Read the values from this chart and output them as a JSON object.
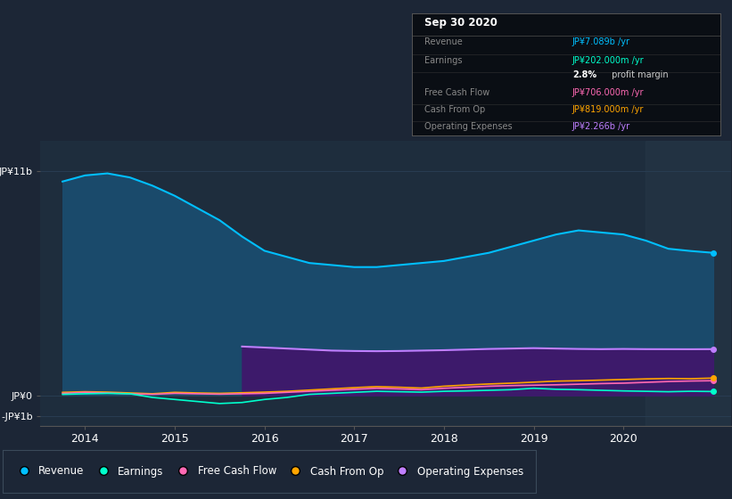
{
  "background_color": "#1c2636",
  "plot_bg_color": "#1e2d3d",
  "grid_color": "#2a3f55",
  "yticks": [
    "JP¥11b",
    "JP¥0",
    "-JP¥1b"
  ],
  "ytick_values": [
    11000000000.0,
    0,
    -1000000000.0
  ],
  "ylim": [
    -1500000000.0,
    12500000000.0
  ],
  "xlim_start": 2013.5,
  "xlim_end": 2021.2,
  "xticks": [
    2014,
    2015,
    2016,
    2017,
    2018,
    2019,
    2020
  ],
  "shaded_region_start": 2020.25,
  "series": {
    "revenue": {
      "color": "#00bfff",
      "fill_color": "#1a4a6b",
      "label": "Revenue",
      "x": [
        2013.75,
        2014.0,
        2014.25,
        2014.5,
        2014.75,
        2015.0,
        2015.25,
        2015.5,
        2015.75,
        2016.0,
        2016.25,
        2016.5,
        2016.75,
        2017.0,
        2017.25,
        2017.5,
        2017.75,
        2018.0,
        2018.25,
        2018.5,
        2018.75,
        2019.0,
        2019.25,
        2019.5,
        2019.75,
        2020.0,
        2020.25,
        2020.5,
        2020.75,
        2021.0
      ],
      "y": [
        10500000000.0,
        10800000000.0,
        10900000000.0,
        10700000000.0,
        10300000000.0,
        9800000000.0,
        9200000000.0,
        8600000000.0,
        7800000000.0,
        7100000000.0,
        6800000000.0,
        6500000000.0,
        6400000000.0,
        6300000000.0,
        6300000000.0,
        6400000000.0,
        6500000000.0,
        6600000000.0,
        6800000000.0,
        7000000000.0,
        7300000000.0,
        7600000000.0,
        7900000000.0,
        8100000000.0,
        8000000000.0,
        7900000000.0,
        7600000000.0,
        7200000000.0,
        7089000000.0,
        7000000000.0
      ]
    },
    "earnings": {
      "color": "#00ffcc",
      "label": "Earnings",
      "x": [
        2013.75,
        2014.0,
        2014.25,
        2014.5,
        2014.75,
        2015.0,
        2015.25,
        2015.5,
        2015.75,
        2016.0,
        2016.25,
        2016.5,
        2016.75,
        2017.0,
        2017.25,
        2017.5,
        2017.75,
        2018.0,
        2018.25,
        2018.5,
        2018.75,
        2019.0,
        2019.25,
        2019.5,
        2019.75,
        2020.0,
        2020.25,
        2020.5,
        2020.75,
        2021.0
      ],
      "y": [
        50000000.0,
        80000000.0,
        100000000.0,
        80000000.0,
        -100000000.0,
        -200000000.0,
        -300000000.0,
        -400000000.0,
        -350000000.0,
        -200000000.0,
        -100000000.0,
        50000000.0,
        100000000.0,
        150000000.0,
        200000000.0,
        180000000.0,
        160000000.0,
        200000000.0,
        220000000.0,
        250000000.0,
        280000000.0,
        350000000.0,
        300000000.0,
        280000000.0,
        250000000.0,
        220000000.0,
        200000000.0,
        180000000.0,
        202000000.0,
        190000000.0
      ]
    },
    "free_cash_flow": {
      "color": "#ff69b4",
      "label": "Free Cash Flow",
      "x": [
        2013.75,
        2014.0,
        2014.25,
        2014.5,
        2014.75,
        2015.0,
        2015.25,
        2015.5,
        2015.75,
        2016.0,
        2016.25,
        2016.5,
        2016.75,
        2017.0,
        2017.25,
        2017.5,
        2017.75,
        2018.0,
        2018.25,
        2018.5,
        2018.75,
        2019.0,
        2019.25,
        2019.5,
        2019.75,
        2020.0,
        2020.25,
        2020.5,
        2020.75,
        2021.0
      ],
      "y": [
        100000000.0,
        150000000.0,
        120000000.0,
        80000000.0,
        50000000.0,
        100000000.0,
        80000000.0,
        60000000.0,
        80000000.0,
        100000000.0,
        150000000.0,
        200000000.0,
        250000000.0,
        300000000.0,
        350000000.0,
        320000000.0,
        280000000.0,
        350000000.0,
        400000000.0,
        450000000.0,
        480000000.0,
        500000000.0,
        520000000.0,
        550000000.0,
        580000000.0,
        600000000.0,
        640000000.0,
        680000000.0,
        706000000.0,
        720000000.0
      ]
    },
    "cash_from_op": {
      "color": "#ffa500",
      "label": "Cash From Op",
      "x": [
        2013.75,
        2014.0,
        2014.25,
        2014.5,
        2014.75,
        2015.0,
        2015.25,
        2015.5,
        2015.75,
        2016.0,
        2016.25,
        2016.5,
        2016.75,
        2017.0,
        2017.25,
        2017.5,
        2017.75,
        2018.0,
        2018.25,
        2018.5,
        2018.75,
        2019.0,
        2019.25,
        2019.5,
        2019.75,
        2020.0,
        2020.25,
        2020.5,
        2020.75,
        2021.0
      ],
      "y": [
        150000000.0,
        180000000.0,
        160000000.0,
        120000000.0,
        80000000.0,
        150000000.0,
        120000000.0,
        100000000.0,
        130000000.0,
        160000000.0,
        200000000.0,
        260000000.0,
        320000000.0,
        380000000.0,
        430000000.0,
        400000000.0,
        360000000.0,
        450000000.0,
        510000000.0,
        560000000.0,
        600000000.0,
        650000000.0,
        700000000.0,
        720000000.0,
        750000000.0,
        780000000.0,
        810000000.0,
        830000000.0,
        819000000.0,
        850000000.0
      ]
    },
    "operating_expenses": {
      "color": "#bf7fff",
      "fill_color": "#3d1a6b",
      "label": "Operating Expenses",
      "x": [
        2015.75,
        2016.0,
        2016.25,
        2016.5,
        2016.75,
        2017.0,
        2017.25,
        2017.5,
        2017.75,
        2018.0,
        2018.25,
        2018.5,
        2018.75,
        2019.0,
        2019.25,
        2019.5,
        2019.75,
        2020.0,
        2020.25,
        2020.5,
        2020.75,
        2021.0
      ],
      "y": [
        2400000000.0,
        2350000000.0,
        2300000000.0,
        2250000000.0,
        2200000000.0,
        2180000000.0,
        2170000000.0,
        2180000000.0,
        2200000000.0,
        2220000000.0,
        2250000000.0,
        2280000000.0,
        2300000000.0,
        2320000000.0,
        2300000000.0,
        2280000000.0,
        2270000000.0,
        2280000000.0,
        2270000000.0,
        2268000000.0,
        2266000000.0,
        2270000000.0
      ]
    }
  },
  "legend": [
    {
      "label": "Revenue",
      "color": "#00bfff"
    },
    {
      "label": "Earnings",
      "color": "#00ffcc"
    },
    {
      "label": "Free Cash Flow",
      "color": "#ff69b4"
    },
    {
      "label": "Cash From Op",
      "color": "#ffa500"
    },
    {
      "label": "Operating Expenses",
      "color": "#bf7fff"
    }
  ],
  "info_box": {
    "date": "Sep 30 2020",
    "rows": [
      {
        "label": "Revenue",
        "value": "JP¥7.089b /yr",
        "value_color": "#00bfff"
      },
      {
        "label": "Earnings",
        "value": "JP¥202.000m /yr",
        "value_color": "#00ffcc"
      },
      {
        "label": "",
        "value": "2.8%",
        "value_color": "#ffffff",
        "extra": " profit margin",
        "extra_color": "#cccccc"
      },
      {
        "label": "Free Cash Flow",
        "value": "JP¥706.000m /yr",
        "value_color": "#ff69b4"
      },
      {
        "label": "Cash From Op",
        "value": "JP¥819.000m /yr",
        "value_color": "#ffa500"
      },
      {
        "label": "Operating Expenses",
        "value": "JP¥2.266b /yr",
        "value_color": "#bf7fff"
      }
    ]
  }
}
